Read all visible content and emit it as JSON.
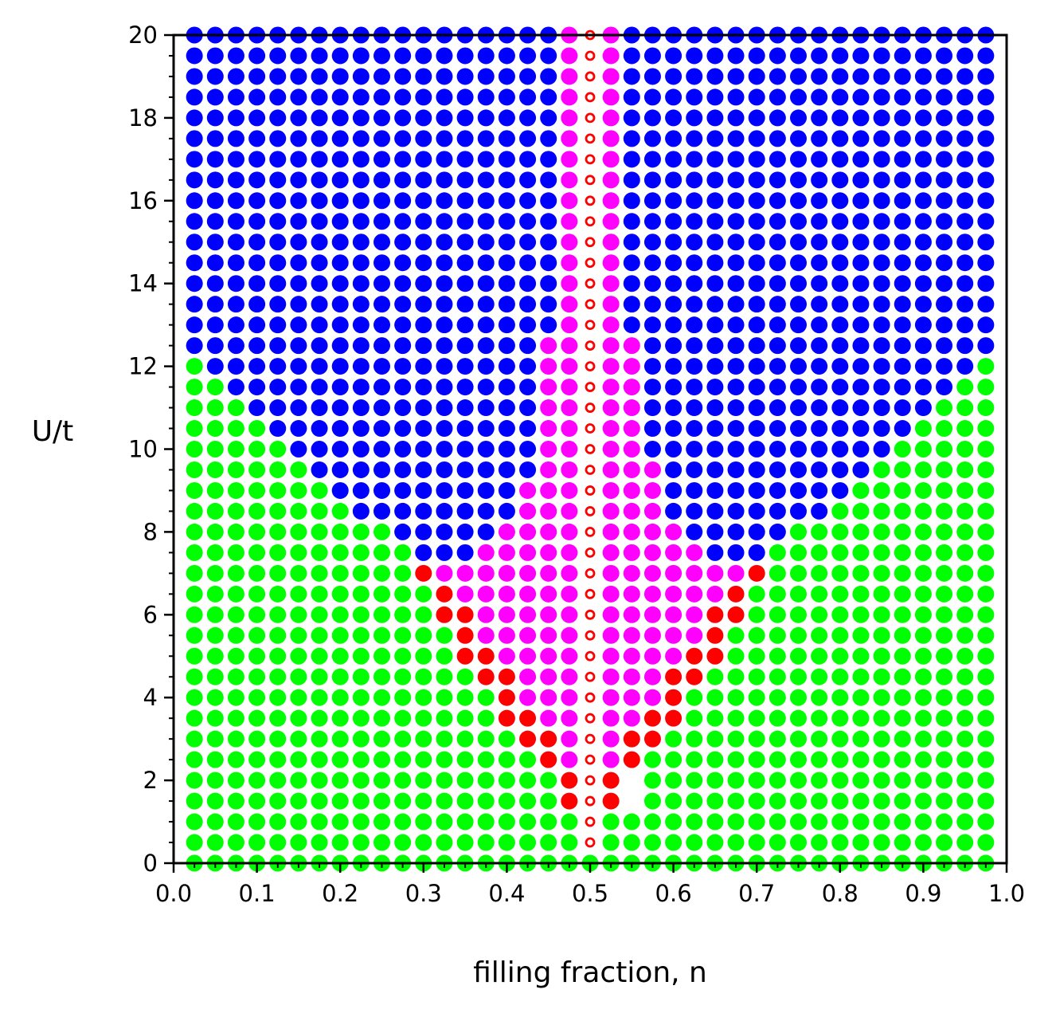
{
  "chart_data": {
    "type": "scatter",
    "title": "",
    "xlabel": "filling fraction, n",
    "ylabel": "U/t",
    "xlim": [
      0.0,
      1.0
    ],
    "ylim": [
      0,
      20
    ],
    "x_ticks": [
      "0.0",
      "0.1",
      "0.2",
      "0.3",
      "0.4",
      "0.5",
      "0.6",
      "0.7",
      "0.8",
      "0.9",
      "1.0"
    ],
    "y_ticks": [
      "0",
      "2",
      "4",
      "6",
      "8",
      "10",
      "12",
      "14",
      "16",
      "18",
      "20"
    ],
    "grid": false,
    "legend": "none",
    "grid_points": {
      "x_start": 0.025,
      "x_step": 0.025,
      "x_count": 39,
      "y_start": 0.0,
      "y_step": 0.5,
      "y_count": 41
    },
    "phase_colors": {
      "G": "#00ff00",
      "B": "#0000ff",
      "M": "#ff00ff",
      "R": "#ff0000",
      "O": "#ff0000"
    },
    "phase_map_rows_from_top": [
      "BBBBBBBBBBBBBBBBBBMOMBBBBBBBBBBBBBBBBBB",
      "BBBBBBBBBBBBBBBBBBMOMBBBBBBBBBBBBBBBBBB",
      "BBBBBBBBBBBBBBBBBBMOMBBBBBBBBBBBBBBBBBB",
      "BBBBBBBBBBBBBBBBBBMOMBBBBBBBBBBBBBBBBBB",
      "BBBBBBBBBBBBBBBBBBMOMBBBBBBBBBBBBBBBBBB",
      "BBBBBBBBBBBBBBBBBBMOMBBBBBBBBBBBBBBBBBB",
      "BBBBBBBBBBBBBBBBBBMOMBBBBBBBBBBBBBBBBBB",
      "BBBBBBBBBBBBBBBBBBMOMBBBBBBBBBBBBBBBBBB",
      "BBBBBBBBBBBBBBBBBBMOMBBBBBBBBBBBBBBBBBB",
      "BBBBBBBBBBBBBBBBBBMOMBBBBBBBBBBBBBBBBBB",
      "BBBBBBBBBBBBBBBBBBMOMBBBBBBBBBBBBBBBBBB",
      "BBBBBBBBBBBBBBBBBBMOMBBBBBBBBBBBBBBBBBB",
      "BBBBBBBBBBBBBBBBBBMOMBBBBBBBBBBBBBBBBBB",
      "BBBBBBBBBBBBBBBBBBMOMBBBBBBBBBBBBBBBBBB",
      "BBBBBBBBBBBBBBBBBBMOMBBBBBBBBBBBBBBBBBB",
      "BBBBBBBBBBBBBBBBBMMOMMBBBBBBBBBBBBBBBBB",
      "GBBBBBBBBBBBBBBBBMMOMMBBBBBBBBBBBBBBBBG",
      "GGBBBBBBBBBBBBBBBMMOMMBBBBBBBBBBBBBBBGG",
      "GGGBBBBBBBBBBBBBBMMOMMBBBBBBBBBBBBBBGGG",
      "GGGGBBBBBBBBBBBBBMMOMMBBBBBBBBBBBBBGGGG",
      "GGGGGBBBBBBBBBBBBMMOMMBBBBBBBBBBBBGGGGG",
      "GGGGGGBBBBBBBBBBBMMOMMMBBBBBBBBBBGGGGGG",
      "GGGGGGGBBBBBBBBBMMMOMMMBBBBBBBBBGGGGGGG",
      "GGGGGGGGBBBBBBBBMMMOMMMBBBBBBBBGGGGGGGG",
      "GGGGGGGGGGBBBBBMMMMOMMMMBBBBBGGGGGGGGGG",
      "GGGGGGGGGGGBBBMMMMMOMMMMMBBBGGGGGGGGGGG",
      "GGGGGGGGGGGRMMMMMMMOMMMMMMMRGGGGGGGGGGG",
      "GGGGGGGGGGGGRMMMMMMOMMMMMMRGGGGGGGGGGGG",
      "GGGGGGGGGGGGRRMMMMMOMMMMMRRGGGGGGGGGGGG",
      "GGGGGGGGGGGGGRMMMMMOMMMMMRGGGGGGGGGGGGG",
      "GGGGGGGGGGGGGRRMMMMOMMMMRRGGGGGGGGGGGGG",
      "GGGGGGGGGGGGGGRRMMMOMMMRRGGGGGGGGGGGGGG",
      "GGGGGGGGGGGGGGGRMMMOMMMRGGGGGGGGGGGGGGG",
      "GGGGGGGGGGGGGGGRRMMOMMRRGGGGGGGGGGGGGGG",
      "GGGGGGGGGGGGGGGGRRMOMRRGGGGGGGGGGGGGGGG",
      "GGGGGGGGGGGGGGGGGRMOMRGGGGGGGGGGGGGGGGG",
      "GGGGGGGGGGGGGGGGGGROR GGGGGGGGGGGGGGGGG",
      "GGGGGGGGGGGGGGGGGGROR GGGGGGGGGGGGGGGGG",
      "GGGGGGGGGGGGGGGGGGGOGGGGGGGGGGGGGGGGGGG",
      "GGGGGGGGGGGGGGGGGGGOGGGGGGGGGGGGGGGGGGG",
      "GGGGGGGGGGGGGGGGGGGGGGGGGGGGGGGGGGGGGGG"
    ]
  }
}
